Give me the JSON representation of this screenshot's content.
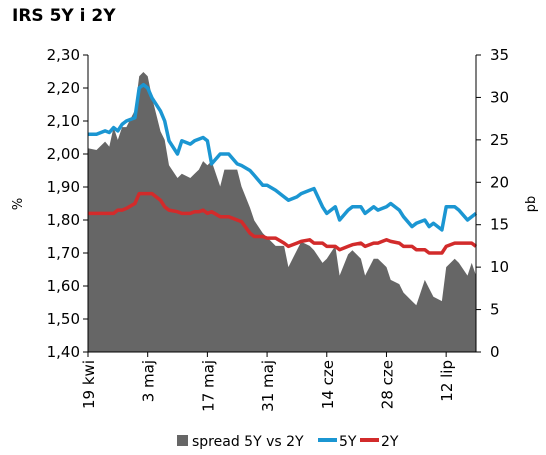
{
  "chart_data": {
    "type": "line",
    "title": "IRS 5Y i 2Y",
    "ylabel_left": "%",
    "ylabel_right": "pb",
    "ylim_left": [
      1.4,
      2.3
    ],
    "ylim_right": [
      0,
      35
    ],
    "yticks_left": [
      "1,40",
      "1,50",
      "1,60",
      "1,70",
      "1,80",
      "1,90",
      "2,00",
      "2,10",
      "2,20",
      "2,30"
    ],
    "yticks_right": [
      "0",
      "5",
      "10",
      "15",
      "20",
      "25",
      "30",
      "35"
    ],
    "x_start": "2012-04-19",
    "x_end": "2012-07-19",
    "xticks": [
      {
        "date": "2012-04-19",
        "label": "19 kwi"
      },
      {
        "date": "2012-05-03",
        "label": "3 maj"
      },
      {
        "date": "2012-05-17",
        "label": "17 maj"
      },
      {
        "date": "2012-05-31",
        "label": "31 maj"
      },
      {
        "date": "2012-06-14",
        "label": "14 cze"
      },
      {
        "date": "2012-06-28",
        "label": "28 cze"
      },
      {
        "date": "2012-07-12",
        "label": "12 lip"
      }
    ],
    "grid": false,
    "legend_position": "bottom",
    "series": [
      {
        "name": "spread 5Y vs 2Y",
        "type": "area",
        "axis": "right",
        "color": "#666666",
        "x": [
          "2012-04-19",
          "2012-04-21",
          "2012-04-23",
          "2012-04-24",
          "2012-04-25",
          "2012-04-26",
          "2012-04-27",
          "2012-04-28",
          "2012-04-30",
          "2012-05-01",
          "2012-05-02",
          "2012-05-03",
          "2012-05-04",
          "2012-05-06",
          "2012-05-07",
          "2012-05-08",
          "2012-05-10",
          "2012-05-11",
          "2012-05-13",
          "2012-05-14",
          "2012-05-15",
          "2012-05-16",
          "2012-05-17",
          "2012-05-18",
          "2012-05-20",
          "2012-05-21",
          "2012-05-22",
          "2012-05-24",
          "2012-05-25",
          "2012-05-27",
          "2012-05-28",
          "2012-05-30",
          "2012-05-31",
          "2012-06-02",
          "2012-06-04",
          "2012-06-05",
          "2012-06-07",
          "2012-06-08",
          "2012-06-10",
          "2012-06-11",
          "2012-06-13",
          "2012-06-14",
          "2012-06-16",
          "2012-06-17",
          "2012-06-19",
          "2012-06-20",
          "2012-06-22",
          "2012-06-23",
          "2012-06-25",
          "2012-06-26",
          "2012-06-28",
          "2012-06-29",
          "2012-07-01",
          "2012-07-02",
          "2012-07-04",
          "2012-07-05",
          "2012-07-07",
          "2012-07-08",
          "2012-07-09",
          "2012-07-11",
          "2012-07-12",
          "2012-07-14",
          "2012-07-15",
          "2012-07-17",
          "2012-07-18",
          "2012-07-19"
        ],
        "values": [
          24,
          23.8,
          24.8,
          24.2,
          26.5,
          25,
          26.5,
          26.5,
          28.5,
          32.5,
          33,
          32.5,
          30,
          26,
          25,
          22,
          20.5,
          21,
          20.5,
          21,
          21.5,
          22.5,
          22,
          22.5,
          19.5,
          21.5,
          21.5,
          21.5,
          19.5,
          17,
          15.5,
          14,
          13.5,
          12.5,
          12.5,
          10,
          12,
          13,
          12.5,
          12,
          10.5,
          11,
          12.5,
          9,
          11.5,
          12,
          11,
          9,
          11,
          11,
          10,
          8.5,
          8,
          7,
          6,
          5.5,
          8.5,
          7.5,
          6.5,
          6,
          10,
          11,
          10.5,
          9,
          10.5,
          9
        ]
      },
      {
        "name": "5Y",
        "type": "line",
        "axis": "left",
        "color": "#1b96d2",
        "x": [
          "2012-04-19",
          "2012-04-21",
          "2012-04-23",
          "2012-04-24",
          "2012-04-25",
          "2012-04-26",
          "2012-04-27",
          "2012-04-28",
          "2012-04-30",
          "2012-05-01",
          "2012-05-02",
          "2012-05-03",
          "2012-05-04",
          "2012-05-06",
          "2012-05-07",
          "2012-05-08",
          "2012-05-10",
          "2012-05-11",
          "2012-05-13",
          "2012-05-14",
          "2012-05-15",
          "2012-05-16",
          "2012-05-17",
          "2012-05-18",
          "2012-05-20",
          "2012-05-21",
          "2012-05-22",
          "2012-05-24",
          "2012-05-25",
          "2012-05-27",
          "2012-05-28",
          "2012-05-30",
          "2012-05-31",
          "2012-06-02",
          "2012-06-04",
          "2012-06-05",
          "2012-06-07",
          "2012-06-08",
          "2012-06-10",
          "2012-06-11",
          "2012-06-13",
          "2012-06-14",
          "2012-06-16",
          "2012-06-17",
          "2012-06-19",
          "2012-06-20",
          "2012-06-22",
          "2012-06-23",
          "2012-06-25",
          "2012-06-26",
          "2012-06-28",
          "2012-06-29",
          "2012-07-01",
          "2012-07-02",
          "2012-07-04",
          "2012-07-05",
          "2012-07-07",
          "2012-07-08",
          "2012-07-09",
          "2012-07-11",
          "2012-07-12",
          "2012-07-14",
          "2012-07-15",
          "2012-07-17",
          "2012-07-18",
          "2012-07-19"
        ],
        "values": [
          2.06,
          2.06,
          2.07,
          2.065,
          2.08,
          2.07,
          2.09,
          2.1,
          2.11,
          2.2,
          2.21,
          2.2,
          2.17,
          2.13,
          2.1,
          2.04,
          2.0,
          2.04,
          2.03,
          2.04,
          2.045,
          2.05,
          2.04,
          1.97,
          2.0,
          2.0,
          2.0,
          1.97,
          1.965,
          1.95,
          1.935,
          1.905,
          1.905,
          1.89,
          1.87,
          1.86,
          1.87,
          1.88,
          1.89,
          1.895,
          1.84,
          1.82,
          1.84,
          1.8,
          1.83,
          1.84,
          1.84,
          1.82,
          1.84,
          1.83,
          1.84,
          1.85,
          1.83,
          1.81,
          1.78,
          1.79,
          1.8,
          1.78,
          1.79,
          1.77,
          1.84,
          1.84,
          1.83,
          1.8,
          1.81,
          1.82
        ]
      },
      {
        "name": "2Y",
        "type": "line",
        "axis": "left",
        "color": "#d22b2b",
        "x": [
          "2012-04-19",
          "2012-04-21",
          "2012-04-23",
          "2012-04-24",
          "2012-04-25",
          "2012-04-26",
          "2012-04-27",
          "2012-04-28",
          "2012-04-30",
          "2012-05-01",
          "2012-05-02",
          "2012-05-03",
          "2012-05-04",
          "2012-05-06",
          "2012-05-07",
          "2012-05-08",
          "2012-05-10",
          "2012-05-11",
          "2012-05-13",
          "2012-05-14",
          "2012-05-15",
          "2012-05-16",
          "2012-05-17",
          "2012-05-18",
          "2012-05-20",
          "2012-05-21",
          "2012-05-22",
          "2012-05-24",
          "2012-05-25",
          "2012-05-27",
          "2012-05-28",
          "2012-05-30",
          "2012-05-31",
          "2012-06-02",
          "2012-06-04",
          "2012-06-05",
          "2012-06-07",
          "2012-06-08",
          "2012-06-10",
          "2012-06-11",
          "2012-06-13",
          "2012-06-14",
          "2012-06-16",
          "2012-06-17",
          "2012-06-19",
          "2012-06-20",
          "2012-06-22",
          "2012-06-23",
          "2012-06-25",
          "2012-06-26",
          "2012-06-28",
          "2012-06-29",
          "2012-07-01",
          "2012-07-02",
          "2012-07-04",
          "2012-07-05",
          "2012-07-07",
          "2012-07-08",
          "2012-07-09",
          "2012-07-11",
          "2012-07-12",
          "2012-07-14",
          "2012-07-15",
          "2012-07-17",
          "2012-07-18",
          "2012-07-19"
        ],
        "values": [
          1.82,
          1.82,
          1.82,
          1.82,
          1.82,
          1.83,
          1.83,
          1.835,
          1.85,
          1.88,
          1.88,
          1.88,
          1.88,
          1.86,
          1.84,
          1.83,
          1.825,
          1.82,
          1.82,
          1.825,
          1.825,
          1.83,
          1.82,
          1.825,
          1.81,
          1.81,
          1.81,
          1.8,
          1.795,
          1.76,
          1.75,
          1.75,
          1.745,
          1.745,
          1.73,
          1.72,
          1.73,
          1.735,
          1.74,
          1.73,
          1.73,
          1.72,
          1.72,
          1.71,
          1.72,
          1.725,
          1.73,
          1.72,
          1.73,
          1.73,
          1.74,
          1.735,
          1.73,
          1.72,
          1.72,
          1.71,
          1.71,
          1.7,
          1.7,
          1.7,
          1.72,
          1.73,
          1.73,
          1.73,
          1.73,
          1.72
        ]
      }
    ]
  }
}
